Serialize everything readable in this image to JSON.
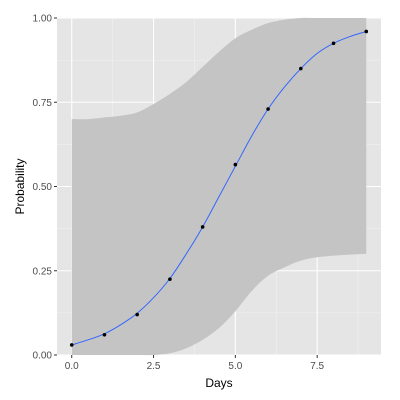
{
  "chart_data": {
    "type": "line",
    "title": "",
    "xlabel": "Days",
    "ylabel": "Probability",
    "xlim": [
      -0.45,
      9.45
    ],
    "ylim": [
      0,
      1
    ],
    "grid": true,
    "legend": "none",
    "x_ticks": [
      0,
      2.5,
      5,
      7.5
    ],
    "x_tick_labels": [
      "0.0",
      "2.5",
      "5.0",
      "7.5"
    ],
    "y_ticks": [
      0,
      0.25,
      0.5,
      0.75,
      1
    ],
    "y_tick_labels": [
      "0.00",
      "0.25",
      "0.50",
      "0.75",
      "1.00"
    ],
    "points": {
      "x": [
        0,
        1,
        2,
        3,
        4,
        5,
        6,
        7,
        8,
        9
      ],
      "y": [
        0.03,
        0.06,
        0.12,
        0.225,
        0.38,
        0.565,
        0.73,
        0.85,
        0.925,
        0.96
      ]
    },
    "fit_line": {
      "x": [
        0,
        0.5,
        1,
        1.5,
        2,
        2.5,
        3,
        3.5,
        4,
        4.5,
        5,
        5.5,
        6,
        6.5,
        7,
        7.5,
        8,
        8.5,
        9
      ],
      "y": [
        0.03,
        0.045,
        0.063,
        0.09,
        0.124,
        0.17,
        0.227,
        0.3,
        0.38,
        0.47,
        0.56,
        0.65,
        0.73,
        0.795,
        0.85,
        0.895,
        0.925,
        0.945,
        0.96
      ]
    },
    "confidence_band": {
      "x": [
        0,
        0.5,
        1,
        1.5,
        2,
        2.5,
        3,
        3.5,
        4,
        4.5,
        5,
        5.5,
        6,
        6.5,
        7,
        7.5,
        8,
        8.5,
        9
      ],
      "lower": [
        0,
        0,
        0,
        0,
        0,
        0,
        0.005,
        0.02,
        0.045,
        0.08,
        0.13,
        0.19,
        0.235,
        0.26,
        0.28,
        0.29,
        0.295,
        0.298,
        0.3
      ],
      "upper": [
        0.7,
        0.7,
        0.705,
        0.71,
        0.72,
        0.745,
        0.775,
        0.81,
        0.855,
        0.9,
        0.94,
        0.965,
        0.985,
        0.995,
        1,
        1,
        1,
        1,
        1
      ]
    },
    "colors": {
      "panel": "#e5e5e5",
      "grid_major": "#ffffff",
      "grid_minor": "#f2f2f2",
      "band": "#c4c4c4",
      "line": "#3366ff",
      "point": "#000000",
      "tick_text": "#4d4d4d"
    }
  }
}
